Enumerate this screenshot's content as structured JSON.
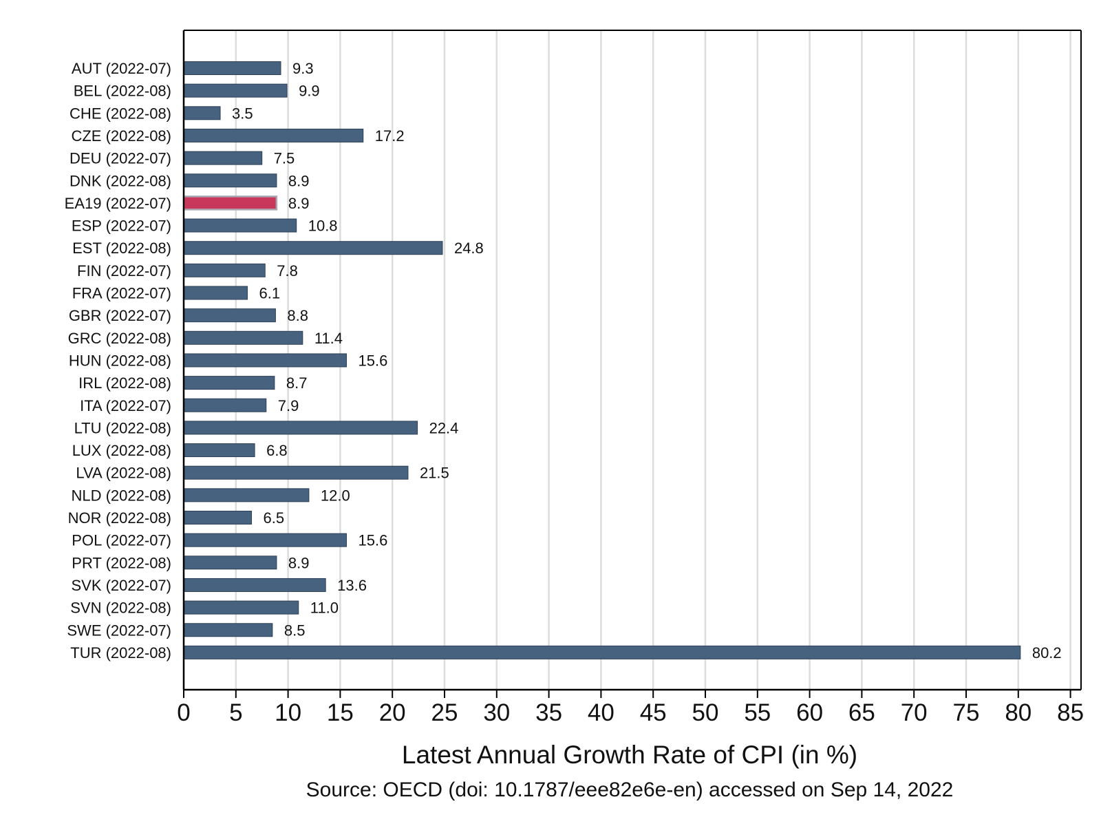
{
  "chart_data": {
    "type": "bar",
    "orientation": "horizontal",
    "categories": [
      "AUT (2022-07)",
      "BEL (2022-08)",
      "CHE (2022-08)",
      "CZE (2022-08)",
      "DEU (2022-07)",
      "DNK (2022-08)",
      "EA19 (2022-07)",
      "ESP (2022-07)",
      "EST (2022-08)",
      "FIN (2022-07)",
      "FRA (2022-07)",
      "GBR (2022-07)",
      "GRC (2022-08)",
      "HUN (2022-08)",
      "IRL (2022-08)",
      "ITA (2022-07)",
      "LTU (2022-08)",
      "LUX (2022-08)",
      "LVA (2022-08)",
      "NLD (2022-08)",
      "NOR (2022-08)",
      "POL (2022-07)",
      "PRT (2022-08)",
      "SVK (2022-07)",
      "SVN (2022-08)",
      "SWE (2022-07)",
      "TUR (2022-08)"
    ],
    "values": [
      9.3,
      9.9,
      3.5,
      17.2,
      7.5,
      8.9,
      8.9,
      10.8,
      24.8,
      7.8,
      6.1,
      8.8,
      11.4,
      15.6,
      8.7,
      7.9,
      22.4,
      6.8,
      21.5,
      12.0,
      6.5,
      15.6,
      8.9,
      13.6,
      11.0,
      8.5,
      80.2
    ],
    "value_labels": [
      "9.3",
      "9.9",
      "3.5",
      "17.2",
      "7.5",
      "8.9",
      "8.9",
      "10.8",
      "24.8",
      "7.8",
      "6.1",
      "8.8",
      "11.4",
      "15.6",
      "8.7",
      "7.9",
      "22.4",
      "6.8",
      "21.5",
      "12.0",
      "6.5",
      "15.6",
      "8.9",
      "13.6",
      "11.0",
      "8.5",
      "80.2"
    ],
    "highlight_category": "EA19 (2022-07)",
    "xlabel": "Latest Annual Growth Rate of CPI (in %)",
    "ylabel": "",
    "xlim": [
      0,
      85
    ],
    "xticks": [
      0,
      5,
      10,
      15,
      20,
      25,
      30,
      35,
      40,
      45,
      50,
      55,
      60,
      65,
      70,
      75,
      80,
      85
    ],
    "grid": "vertical",
    "legend": "none",
    "note": "Source: OECD (doi: 10.1787/eee82e6e-en) accessed on Sep 14, 2022",
    "colors": {
      "bar": "#46627f",
      "bar_highlight": "#c9385a",
      "grid": "#dcdcdc",
      "axis": "#000000"
    }
  }
}
